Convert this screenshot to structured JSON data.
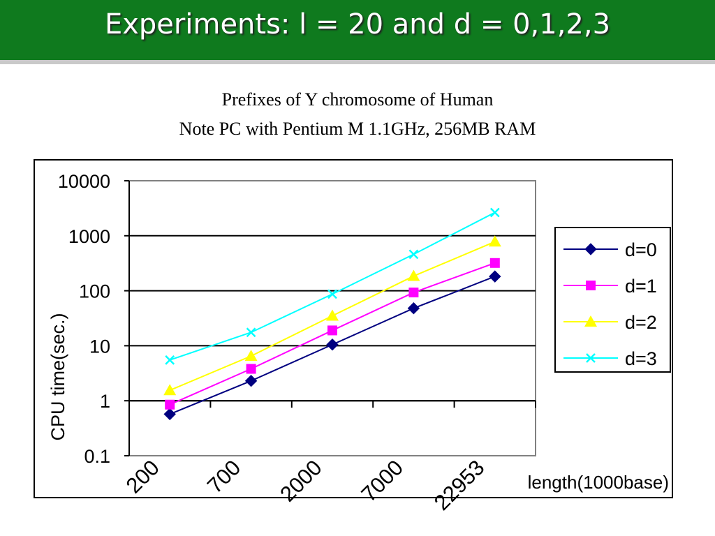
{
  "slide": {
    "title": "Experiments: l = 20 and d = 0,1,2,3",
    "subtitle_line1": "Prefixes of Y chromosome of Human",
    "subtitle_line2": "Note PC with Pentium M 1.1GHz, 256MB RAM"
  },
  "chart_data": {
    "type": "line",
    "categories": [
      "200",
      "700",
      "2000",
      "7000",
      "22953"
    ],
    "xlabel": "length(1000base)",
    "ylabel": "CPU time(sec.)",
    "yscale": "log",
    "ylim": [
      0.1,
      10000
    ],
    "yticks": [
      "10000",
      "1000",
      "100",
      "10",
      "1",
      "0.1"
    ],
    "grid": true,
    "legend_position": "right",
    "series": [
      {
        "name": "d=0",
        "values": [
          0.57,
          2.3,
          10.5,
          48,
          182
        ],
        "color": "#000080",
        "marker": "diamond"
      },
      {
        "name": "d=1",
        "values": [
          0.85,
          3.8,
          19,
          93,
          320
        ],
        "color": "#ff00ff",
        "marker": "square"
      },
      {
        "name": "d=2",
        "values": [
          1.55,
          6.5,
          35,
          185,
          780
        ],
        "color": "#ffff00",
        "marker": "triangle"
      },
      {
        "name": "d=3",
        "values": [
          5.5,
          17.5,
          87,
          460,
          2650
        ],
        "color": "#00ffff",
        "marker": "x"
      }
    ]
  }
}
